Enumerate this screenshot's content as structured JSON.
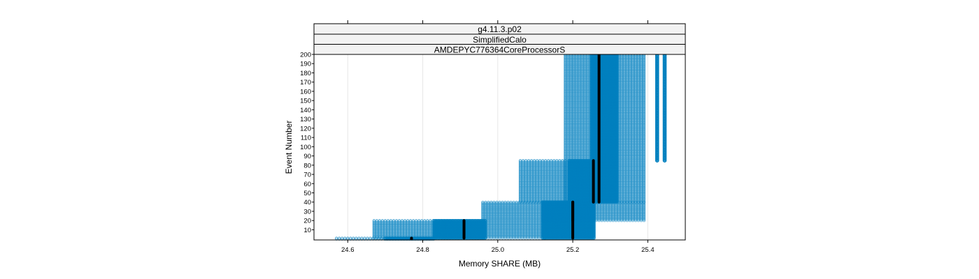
{
  "chart_data": {
    "type": "scatter",
    "strips": [
      "g4.11.3.p02",
      "SimplifiedCalo",
      "AMDEPYC776364CoreProcessorS"
    ],
    "xlabel": "Memory SHARE (MB)",
    "ylabel": "Event Number",
    "xlim": [
      24.51,
      25.5
    ],
    "ylim": [
      -1,
      200
    ],
    "x_ticks": [
      24.6,
      24.8,
      25.0,
      25.2,
      25.4
    ],
    "x_tick_labels": [
      "24.6",
      "24.8",
      "25.0",
      "25.2",
      "25.4"
    ],
    "y_ticks": [
      10,
      20,
      30,
      40,
      50,
      60,
      70,
      80,
      90,
      100,
      110,
      120,
      130,
      140,
      150,
      160,
      170,
      180,
      190,
      200
    ],
    "y_tick_labels": [
      "10",
      "20",
      "30",
      "40",
      "50",
      "60",
      "70",
      "80",
      "90",
      "100",
      "110",
      "120",
      "130",
      "140",
      "150",
      "160",
      "170",
      "180",
      "190",
      "200"
    ],
    "grid": true,
    "point_color": "#0080bf",
    "median_color": "#000000",
    "bands": [
      {
        "events": [
          0,
          1
        ],
        "light": [
          24.57,
          24.82
        ],
        "dense": [
          24.7,
          24.83
        ],
        "median": 24.77
      },
      {
        "events": [
          1,
          20
        ],
        "light": [
          24.67,
          24.96
        ],
        "dense": [
          24.83,
          24.97
        ],
        "median": 24.91
      },
      {
        "events": [
          1,
          40
        ],
        "light": [
          24.96,
          25.13
        ],
        "dense": [
          25.12,
          25.26
        ],
        "median": 25.2
      },
      {
        "events": [
          20,
          40
        ],
        "light": [
          25.12,
          25.39
        ],
        "dense": [
          25.12,
          25.26
        ],
        "median": 25.2
      },
      {
        "events": [
          40,
          85
        ],
        "light": [
          25.06,
          25.18
        ],
        "dense": [
          25.19,
          25.26
        ],
        "median": 25.255
      },
      {
        "events": [
          40,
          200
        ],
        "light": [
          25.18,
          25.39
        ],
        "dense": [
          25.25,
          25.32
        ],
        "median": 25.27
      }
    ],
    "outliers": [
      {
        "x": 25.425,
        "events": [
          85,
          200
        ]
      },
      {
        "x": 25.445,
        "events": [
          85,
          200
        ]
      }
    ]
  }
}
